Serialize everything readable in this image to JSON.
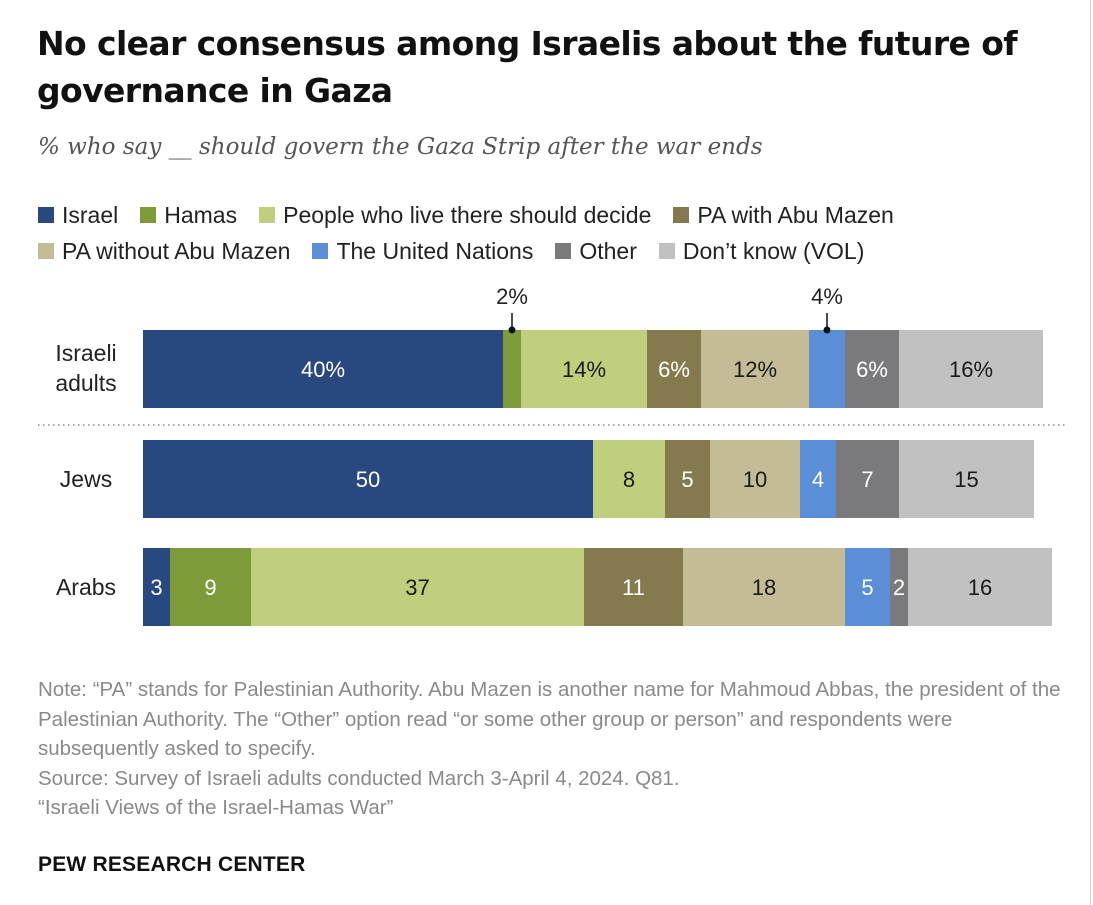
{
  "title": "No clear consensus among Israelis about the future of governance in Gaza",
  "subtitle": "% who say __ should govern the Gaza Strip after the war ends",
  "chart_data": {
    "type": "bar",
    "orientation": "horizontal",
    "stacked": true,
    "title": "No clear consensus among Israelis about the future of governance in Gaza",
    "subtitle": "% who say __ should govern the Gaza Strip after the war ends",
    "xlim": [
      0,
      100
    ],
    "grid": false,
    "legend_position": "top",
    "categories": [
      "Israeli adults",
      "Jews",
      "Arabs"
    ],
    "series": [
      {
        "name": "Israel",
        "color": "#2a4880",
        "values": [
          40,
          50,
          3
        ],
        "labels": [
          "40%",
          "50",
          "3"
        ]
      },
      {
        "name": "Hamas",
        "color": "#7e9b3a",
        "values": [
          2,
          0,
          9
        ],
        "labels": [
          "2%",
          "",
          "9"
        ]
      },
      {
        "name": "People who live there should decide",
        "color": "#bfcf7d",
        "values": [
          14,
          8,
          37
        ],
        "labels": [
          "14%",
          "8",
          "37"
        ]
      },
      {
        "name": "PA with Abu Mazen",
        "color": "#857a4d",
        "values": [
          6,
          5,
          11
        ],
        "labels": [
          "6%",
          "5",
          "11"
        ]
      },
      {
        "name": "PA without Abu Mazen",
        "color": "#c4bc97",
        "values": [
          12,
          10,
          18
        ],
        "labels": [
          "12%",
          "10",
          "18"
        ]
      },
      {
        "name": "The United Nations",
        "color": "#5b8ed6",
        "values": [
          4,
          4,
          5
        ],
        "labels": [
          "4%",
          "4",
          "5"
        ]
      },
      {
        "name": "Other",
        "color": "#7a7a7c",
        "values": [
          6,
          7,
          2
        ],
        "labels": [
          "6%",
          "7",
          "2"
        ]
      },
      {
        "name": "Don’t know (VOL)",
        "color": "#c1c1c1",
        "values": [
          16,
          15,
          16
        ],
        "labels": [
          "16%",
          "15",
          "16"
        ]
      }
    ],
    "callouts": [
      {
        "category": "Israeli adults",
        "series": "Hamas",
        "text": "2%"
      },
      {
        "category": "Israeli adults",
        "series": "The United Nations",
        "text": "4%"
      }
    ]
  },
  "row_labels": [
    [
      "Israeli",
      "adults"
    ],
    [
      "Jews"
    ],
    [
      "Arabs"
    ]
  ],
  "notes": [
    "Note: “PA” stands for Palestinian Authority. Abu Mazen is another name for Mahmoud Abbas, the president of the Palestinian Authority. The “Other” option read “or some other group or person” and respondents were subsequently asked to specify.",
    "Source: Survey of Israeli adults conducted March 3-April 4, 2024. Q81.",
    "“Israeli Views of the Israel-Hamas War”"
  ],
  "brand": "PEW RESEARCH CENTER"
}
